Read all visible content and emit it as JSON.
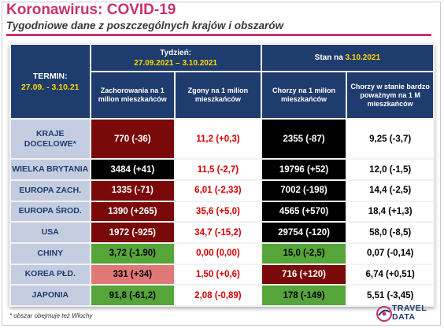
{
  "title": "Koronawirus: COVID-19",
  "subtitle": "Tygodniowe dane z poszczególnych krajów i obszarów",
  "header": {
    "termin_label": "TERMIN:",
    "termin_value": "27.09. - 3.10.21",
    "week_label": "Tydzień:",
    "week_value": "27.09.2021 – 3.10.2021",
    "state_label": "Stan na ",
    "state_value": "3.10.2021",
    "col1": "Zachorowania na 1 milion mieszkańców",
    "col2": "Zgony na 1 milion mieszkańców",
    "col3": "Chorzy na 1 milion mieszkańców",
    "col4": "Chorzy w stanie bardzo poważnym na 1 M mieszkańców"
  },
  "rows": [
    {
      "label": "KRAJE DOCELOWE*",
      "cases": "770 (-36)",
      "deaths": "11,2 (+0,3)",
      "sick": "2355 (-87)",
      "severe": "9,25 (-3,7)"
    },
    {
      "label": "WIELKA BRYTANIA",
      "cases": "3484 (+41)",
      "deaths": "11,5 (-2,7)",
      "sick": "19796 (+52)",
      "severe": "12,0 (-1,5)"
    },
    {
      "label": "EUROPA ZACH.",
      "cases": "1335 (-71)",
      "deaths": "6,01 (-2,33)",
      "sick": "7002 (-198)",
      "severe": "14,4 (-2,5)"
    },
    {
      "label": "EUROPA ŚROD.",
      "cases": "1390 (+265)",
      "deaths": "35,6 (+5,0)",
      "sick": "4565 (+570)",
      "severe": "18,4 (+1,3)"
    },
    {
      "label": "USA",
      "cases": "1972 (-925)",
      "deaths": "34,7 (-15,2)",
      "sick": "29754 (-120)",
      "severe": "58,0 (-8,5)"
    },
    {
      "label": "CHINY",
      "cases": "3,72 (-1.90)",
      "deaths": "0,00 (0,00)",
      "sick": "15,0 (-2,5)",
      "severe": "0,07 (-0,14)"
    },
    {
      "label": "KOREA PŁD.",
      "cases": "331 (+34)",
      "deaths": "1,50 (+0,6)",
      "sick": "716 (+120)",
      "severe": "6,74 (+0,51)"
    },
    {
      "label": "JAPONIA",
      "cases": "91,8 (-61,2)",
      "deaths": "2,08 (-0,89)",
      "sick": "178 (-149)",
      "severe": "5,51 (-3,45)"
    }
  ],
  "footnote": "* obszar obejmuje też Włochy",
  "logo": {
    "line1": "TRAVEL",
    "line2": "DATA"
  },
  "colors": {
    "accent": "#c8336b",
    "header": "#1f3c6e",
    "rowlabel": "#c4cde0",
    "darkred": "#7a0a0a",
    "green": "#55a53a",
    "pink": "#e07878"
  }
}
